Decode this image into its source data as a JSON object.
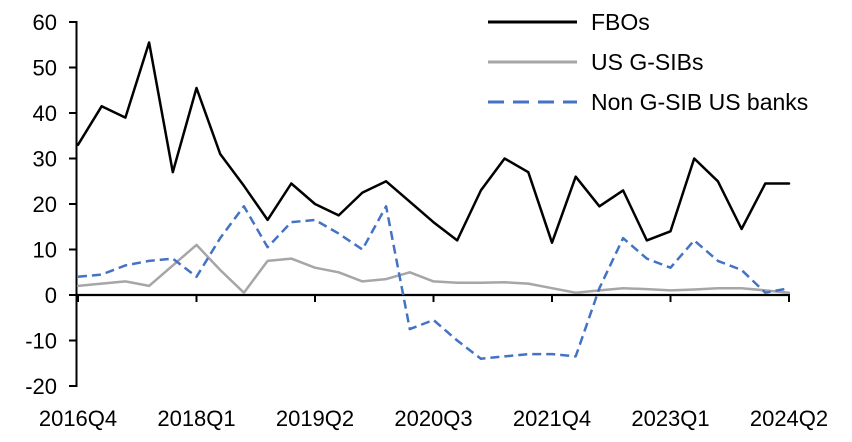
{
  "chart_data": {
    "type": "line",
    "title": "",
    "xlabel": "",
    "ylabel": "",
    "grid": false,
    "legend_position": "top-right",
    "x_axis": {
      "categories": [
        "2016Q4",
        "2017Q1",
        "2017Q2",
        "2017Q3",
        "2017Q4",
        "2018Q1",
        "2018Q2",
        "2018Q3",
        "2018Q4",
        "2019Q1",
        "2019Q2",
        "2019Q3",
        "2019Q4",
        "2020Q1",
        "2020Q2",
        "2020Q3",
        "2020Q4",
        "2021Q1",
        "2021Q2",
        "2021Q3",
        "2021Q4",
        "2022Q1",
        "2022Q2",
        "2022Q3",
        "2022Q4",
        "2023Q1",
        "2023Q2",
        "2023Q3",
        "2023Q4",
        "2024Q1",
        "2024Q2"
      ],
      "tick_indices": [
        0,
        5,
        10,
        15,
        20,
        25,
        30
      ],
      "tick_labels": [
        "2016Q4",
        "2018Q1",
        "2019Q2",
        "2020Q3",
        "2021Q4",
        "2023Q1",
        "2024Q2"
      ]
    },
    "y_axis": {
      "ticks": [
        60,
        50,
        40,
        30,
        20,
        10,
        0,
        -10,
        -20
      ],
      "range": [
        -20,
        60
      ]
    },
    "series": [
      {
        "name": "FBOs",
        "color": "#000000",
        "line_style": "solid",
        "values": [
          33,
          41.5,
          39,
          55.5,
          27,
          45.5,
          31,
          24,
          16.5,
          24.5,
          20,
          17.5,
          22.5,
          25,
          20.5,
          16,
          12,
          23,
          30,
          27,
          11.5,
          26,
          19.5,
          23,
          12,
          14,
          30,
          25,
          14.5,
          24.5,
          24.5
        ]
      },
      {
        "name": "US G-SIBs",
        "color": "#A6A6A6",
        "line_style": "solid",
        "values": [
          2,
          2.5,
          3,
          2,
          6.5,
          11,
          5.5,
          0.5,
          7.5,
          8,
          6,
          5,
          3,
          3.5,
          5,
          3,
          2.7,
          2.7,
          2.8,
          2.5,
          1.5,
          0.5,
          1,
          1.5,
          1.3,
          1,
          1.2,
          1.5,
          1.5,
          1,
          0.5
        ]
      },
      {
        "name": "Non G-SIB US banks",
        "color": "#4472C4",
        "line_style": "dashed",
        "values": [
          4,
          4.5,
          6.5,
          7.5,
          8,
          4,
          12.5,
          19.5,
          10.5,
          16,
          16.5,
          13.5,
          10,
          19.5,
          -7.5,
          -5.5,
          -10,
          -14,
          -13.5,
          -13,
          -13,
          -13.5,
          1.5,
          12.5,
          8,
          6,
          12,
          7.5,
          5.5,
          0.5,
          1.5
        ]
      }
    ]
  }
}
